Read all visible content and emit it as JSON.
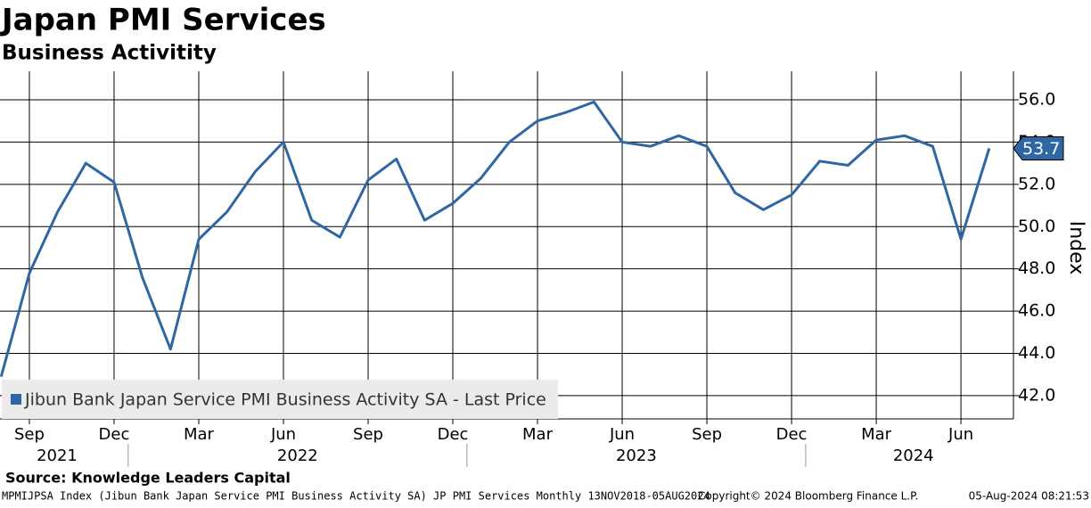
{
  "chart_data": {
    "type": "line",
    "title": "Japan PMI Services",
    "subtitle": "Business Activitity",
    "y_label": "Index",
    "source": "Source: Knowledge Leaders Capital",
    "footer_left": "MPMIJPSA Index (Jibun Bank Japan Service PMI Business Activity SA) JP PMI Services  Monthly 13NOV2018-05AUG2024",
    "copyright": "Copyright© 2024 Bloomberg Finance L.P.",
    "timestamp": "05-Aug-2024 08:21:53",
    "x": [
      "2021-08",
      "2021-09",
      "2021-10",
      "2021-11",
      "2021-12",
      "2022-01",
      "2022-02",
      "2022-03",
      "2022-04",
      "2022-05",
      "2022-06",
      "2022-07",
      "2022-08",
      "2022-09",
      "2022-10",
      "2022-11",
      "2022-12",
      "2023-01",
      "2023-02",
      "2023-03",
      "2023-04",
      "2023-05",
      "2023-06",
      "2023-07",
      "2023-08",
      "2023-09",
      "2023-10",
      "2023-11",
      "2023-12",
      "2024-01",
      "2024-02",
      "2024-03",
      "2024-04",
      "2024-05",
      "2024-06",
      "2024-07"
    ],
    "series": [
      {
        "name": "Jibun Bank Japan Service PMI Business Activity SA - Last Price",
        "color": "#2e67a3",
        "values": [
          42.9,
          47.8,
          50.7,
          53.0,
          52.1,
          47.6,
          44.2,
          49.4,
          50.7,
          52.6,
          54.0,
          50.3,
          49.5,
          52.2,
          53.2,
          50.3,
          51.1,
          52.3,
          54.0,
          55.0,
          55.4,
          55.9,
          54.0,
          53.8,
          54.3,
          53.8,
          51.6,
          50.8,
          51.5,
          53.1,
          52.9,
          54.1,
          54.3,
          53.8,
          49.4,
          53.7
        ]
      }
    ],
    "ylim": [
      40.9,
      57.35
    ],
    "yticks": [
      {
        "value": 42,
        "label": "42.0"
      },
      {
        "value": 44,
        "label": "44.0"
      },
      {
        "value": 46,
        "label": "46.0"
      },
      {
        "value": 48,
        "label": "48.0"
      },
      {
        "value": 50,
        "label": "50.0"
      },
      {
        "value": 52,
        "label": "52.0"
      },
      {
        "value": 54,
        "label": "54.0"
      },
      {
        "value": 56,
        "label": "56.0"
      }
    ],
    "xticks": [
      {
        "value": "2021-09",
        "label": "Sep"
      },
      {
        "value": "2021-12",
        "label": "Dec"
      },
      {
        "value": "2022-03",
        "label": "Mar"
      },
      {
        "value": "2022-06",
        "label": "Jun"
      },
      {
        "value": "2022-09",
        "label": "Sep"
      },
      {
        "value": "2022-12",
        "label": "Dec"
      },
      {
        "value": "2023-03",
        "label": "Mar"
      },
      {
        "value": "2023-06",
        "label": "Jun"
      },
      {
        "value": "2023-09",
        "label": "Sep"
      },
      {
        "value": "2023-12",
        "label": "Dec"
      },
      {
        "value": "2024-03",
        "label": "Mar"
      },
      {
        "value": "2024-06",
        "label": "Jun"
      }
    ],
    "year_labels": [
      "2021",
      "2022",
      "2023",
      "2024"
    ],
    "grid": true
  }
}
